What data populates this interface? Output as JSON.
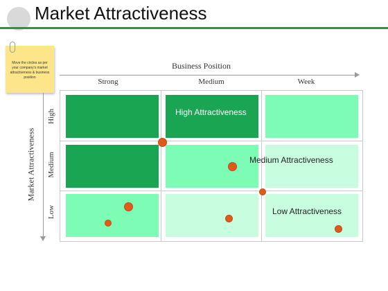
{
  "slide": {
    "title": "Market Attractiveness",
    "note": "Move the circles as per your company's market attractiveness & business position"
  },
  "matrix": {
    "x_axis_title": "Business Position",
    "y_axis_title": "Market Attractiveness",
    "columns": [
      "Strong",
      "Medium",
      "Week"
    ],
    "rows": [
      "High",
      "Medium",
      "Low"
    ],
    "cells": [
      {
        "text": ""
      },
      {
        "text": "High Attractiveness"
      },
      {
        "text": ""
      },
      {
        "text": ""
      },
      {
        "text": "Medium Attractiveness"
      },
      {
        "text": ""
      },
      {
        "text": ""
      },
      {
        "text": "Low Attractiveness"
      },
      {
        "text": ""
      }
    ],
    "colors": {
      "dark_green": "#1aa552",
      "light_green": "#7dfcb5",
      "pale_green": "#c8fde0",
      "marker": "#e05a1a",
      "rule": "#1f9a4a"
    }
  }
}
